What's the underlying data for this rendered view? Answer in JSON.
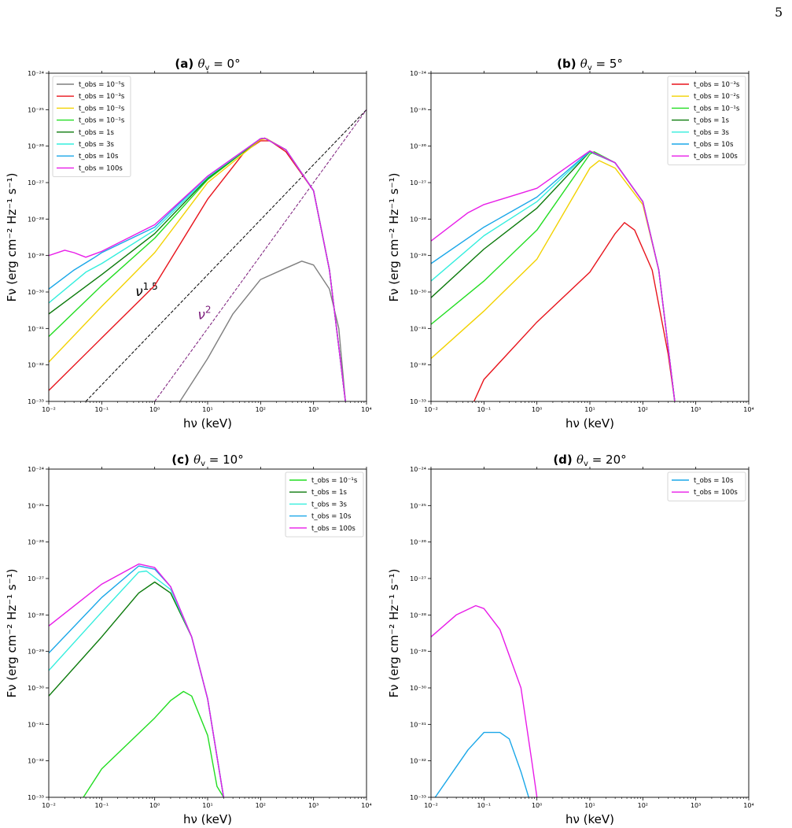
{
  "page": {
    "number": "5"
  },
  "chart_data": [
    {
      "type": "line",
      "panel": "(a)",
      "title_label": "(a)",
      "title_angle": "0°",
      "xlabel": "hν (keV)",
      "ylabel": "Fν (erg cm⁻² Hz⁻¹ s⁻¹)",
      "x_scale": "log",
      "y_scale": "log",
      "xlim": [
        0.01,
        10000
      ],
      "ylim": [
        1e-33,
        1e-24
      ],
      "legend_position": "top-left",
      "series": [
        {
          "name": "t_obs = 10⁻⁵s",
          "color": "#7f7f7f",
          "points": [
            [
              3,
              1e-33
            ],
            [
              10,
              1.5e-32
            ],
            [
              30,
              2.5e-31
            ],
            [
              100,
              2.2e-30
            ],
            [
              300,
              4.5e-30
            ],
            [
              600,
              7e-30
            ],
            [
              1000,
              5.5e-30
            ],
            [
              2000,
              1.2e-30
            ],
            [
              3000,
              1e-31
            ],
            [
              4000,
              1e-33
            ]
          ]
        },
        {
          "name": "t_obs = 10⁻³s",
          "color": "#e8141c",
          "points": [
            [
              0.01,
              2e-33
            ],
            [
              0.1,
              5.5e-32
            ],
            [
              1,
              1.5e-30
            ],
            [
              10,
              3.5e-28
            ],
            [
              50,
              7e-27
            ],
            [
              100,
              1.4e-26
            ],
            [
              150,
              1.4e-26
            ],
            [
              300,
              7e-27
            ],
            [
              1000,
              6e-28
            ],
            [
              2000,
              4e-30
            ],
            [
              4000,
              1e-33
            ]
          ]
        },
        {
          "name": "t_obs = 10⁻²s",
          "color": "#f2d200",
          "points": [
            [
              0.01,
              1.2e-32
            ],
            [
              0.1,
              4e-31
            ],
            [
              1,
              1.2e-29
            ],
            [
              10,
              1e-27
            ],
            [
              100,
              1.5e-26
            ],
            [
              130,
              1.6e-26
            ],
            [
              300,
              8e-27
            ],
            [
              1000,
              6e-28
            ],
            [
              2000,
              4e-30
            ],
            [
              4000,
              1e-33
            ]
          ]
        },
        {
          "name": "t_obs = 10⁻¹s",
          "color": "#22dd22",
          "points": [
            [
              0.01,
              6e-32
            ],
            [
              0.1,
              1.5e-30
            ],
            [
              1,
              3e-29
            ],
            [
              10,
              1.2e-27
            ],
            [
              100,
              1.6e-26
            ],
            [
              120,
              1.65e-26
            ],
            [
              300,
              8e-27
            ],
            [
              1000,
              6e-28
            ],
            [
              2000,
              4e-30
            ],
            [
              4000,
              1e-33
            ]
          ]
        },
        {
          "name": "t_obs = 1s",
          "color": "#0b7a0b",
          "points": [
            [
              0.01,
              2.5e-31
            ],
            [
              0.1,
              3e-30
            ],
            [
              1,
              4e-29
            ],
            [
              10,
              1.3e-27
            ],
            [
              100,
              1.6e-26
            ],
            [
              120,
              1.65e-26
            ],
            [
              300,
              8e-27
            ],
            [
              1000,
              6e-28
            ],
            [
              2000,
              4e-30
            ],
            [
              4000,
              1e-33
            ]
          ]
        },
        {
          "name": "t_obs = 3s",
          "color": "#33eedd",
          "points": [
            [
              0.01,
              5e-31
            ],
            [
              0.05,
              3.5e-30
            ],
            [
              0.1,
              6e-30
            ],
            [
              1,
              5e-29
            ],
            [
              10,
              1.4e-27
            ],
            [
              100,
              1.6e-26
            ],
            [
              120,
              1.65e-26
            ],
            [
              300,
              8e-27
            ],
            [
              1000,
              6e-28
            ],
            [
              2000,
              4e-30
            ],
            [
              4000,
              1e-33
            ]
          ]
        },
        {
          "name": "t_obs = 10s",
          "color": "#1aa7e8",
          "points": [
            [
              0.01,
              1.2e-30
            ],
            [
              0.03,
              4e-30
            ],
            [
              0.07,
              8.5e-30
            ],
            [
              0.1,
              1.2e-29
            ],
            [
              1,
              6e-29
            ],
            [
              10,
              1.5e-27
            ],
            [
              100,
              1.6e-26
            ],
            [
              120,
              1.65e-26
            ],
            [
              300,
              8e-27
            ],
            [
              1000,
              6e-28
            ],
            [
              2000,
              4e-30
            ],
            [
              4000,
              1e-33
            ]
          ]
        },
        {
          "name": "t_obs = 100s",
          "color": "#e81ce8",
          "points": [
            [
              0.01,
              1e-29
            ],
            [
              0.02,
              1.4e-29
            ],
            [
              0.03,
              1.2e-29
            ],
            [
              0.05,
              9e-30
            ],
            [
              0.1,
              1.3e-29
            ],
            [
              1,
              7e-29
            ],
            [
              10,
              1.5e-27
            ],
            [
              100,
              1.6e-26
            ],
            [
              120,
              1.65e-26
            ],
            [
              300,
              8e-27
            ],
            [
              1000,
              6e-28
            ],
            [
              2000,
              4e-30
            ],
            [
              4000,
              1e-33
            ]
          ]
        }
      ],
      "reference_lines": [
        {
          "label": "ν",
          "exponent": "1.5",
          "color": "#000000",
          "points": [
            [
              0.05,
              1e-33
            ],
            [
              10000,
              1e-25
            ]
          ]
        },
        {
          "label": "ν",
          "exponent": "2",
          "color": "#7a1a7a",
          "points": [
            [
              1,
              1e-33
            ],
            [
              10000,
              1e-25
            ]
          ]
        }
      ]
    },
    {
      "type": "line",
      "panel": "(b)",
      "title_label": "(b)",
      "title_angle": "5°",
      "xlabel": "hν (keV)",
      "ylabel": "Fν (erg cm⁻² Hz⁻¹ s⁻¹)",
      "x_scale": "log",
      "y_scale": "log",
      "xlim": [
        0.01,
        10000
      ],
      "ylim": [
        1e-33,
        1e-24
      ],
      "legend_position": "top-right",
      "series": [
        {
          "name": "t_obs = 10⁻³s",
          "color": "#e8141c",
          "points": [
            [
              0.065,
              1e-33
            ],
            [
              0.1,
              4e-33
            ],
            [
              1,
              1.5e-31
            ],
            [
              10,
              3.5e-30
            ],
            [
              30,
              4e-29
            ],
            [
              45,
              8e-29
            ],
            [
              70,
              5e-29
            ],
            [
              150,
              4e-30
            ],
            [
              300,
              2e-32
            ],
            [
              400,
              1e-33
            ]
          ]
        },
        {
          "name": "t_obs = 10⁻²s",
          "color": "#f2d200",
          "points": [
            [
              0.01,
              1.5e-32
            ],
            [
              0.1,
              3e-31
            ],
            [
              1,
              8e-30
            ],
            [
              10,
              2.5e-27
            ],
            [
              15,
              4e-27
            ],
            [
              30,
              2.5e-27
            ],
            [
              100,
              2.5e-28
            ],
            [
              200,
              4e-30
            ],
            [
              400,
              1e-33
            ]
          ]
        },
        {
          "name": "t_obs = 10⁻¹s",
          "color": "#22dd22",
          "points": [
            [
              0.01,
              1.3e-31
            ],
            [
              0.1,
              2e-30
            ],
            [
              1,
              5e-29
            ],
            [
              10,
              6e-27
            ],
            [
              12,
              7e-27
            ],
            [
              30,
              3.5e-27
            ],
            [
              100,
              3e-28
            ],
            [
              200,
              4e-30
            ],
            [
              400,
              1e-33
            ]
          ]
        },
        {
          "name": "t_obs = 1s",
          "color": "#0b7a0b",
          "points": [
            [
              0.01,
              7e-31
            ],
            [
              0.1,
              1.5e-29
            ],
            [
              1,
              2e-28
            ],
            [
              10,
              7e-27
            ],
            [
              30,
              3.5e-27
            ],
            [
              100,
              3e-28
            ],
            [
              200,
              4e-30
            ],
            [
              400,
              1e-33
            ]
          ]
        },
        {
          "name": "t_obs = 3s",
          "color": "#33eedd",
          "points": [
            [
              0.01,
              2e-30
            ],
            [
              0.1,
              3.5e-29
            ],
            [
              1,
              3e-28
            ],
            [
              10,
              7.2e-27
            ],
            [
              30,
              3.5e-27
            ],
            [
              100,
              3e-28
            ],
            [
              200,
              4e-30
            ],
            [
              400,
              1e-33
            ]
          ]
        },
        {
          "name": "t_obs = 10s",
          "color": "#1aa7e8",
          "points": [
            [
              0.01,
              6e-30
            ],
            [
              0.1,
              6e-29
            ],
            [
              1,
              4e-28
            ],
            [
              10,
              7.3e-27
            ],
            [
              30,
              3.5e-27
            ],
            [
              100,
              3e-28
            ],
            [
              200,
              4e-30
            ],
            [
              400,
              1e-33
            ]
          ]
        },
        {
          "name": "t_obs = 100s",
          "color": "#e81ce8",
          "points": [
            [
              0.01,
              2.5e-29
            ],
            [
              0.05,
              1.5e-28
            ],
            [
              0.1,
              2.5e-28
            ],
            [
              1,
              7e-28
            ],
            [
              10,
              7.4e-27
            ],
            [
              30,
              3.5e-27
            ],
            [
              100,
              3e-28
            ],
            [
              200,
              4e-30
            ],
            [
              400,
              1e-33
            ]
          ]
        }
      ]
    },
    {
      "type": "line",
      "panel": "(c)",
      "title_label": "(c)",
      "title_angle": "10°",
      "xlabel": "hν (keV)",
      "ylabel": "Fν (erg cm⁻² Hz⁻¹ s⁻¹)",
      "x_scale": "log",
      "y_scale": "log",
      "xlim": [
        0.01,
        10000
      ],
      "ylim": [
        1e-33,
        1e-24
      ],
      "legend_position": "top-right",
      "series": [
        {
          "name": "t_obs = 10⁻¹s",
          "color": "#22dd22",
          "points": [
            [
              0.045,
              1e-33
            ],
            [
              0.1,
              6e-33
            ],
            [
              1,
              1.5e-31
            ],
            [
              2,
              4.5e-31
            ],
            [
              3.5,
              8e-31
            ],
            [
              5,
              6e-31
            ],
            [
              10,
              5e-32
            ],
            [
              15,
              2e-33
            ],
            [
              20,
              1e-33
            ]
          ]
        },
        {
          "name": "t_obs = 1s",
          "color": "#0b7a0b",
          "points": [
            [
              0.01,
              6e-31
            ],
            [
              0.1,
              2.5e-29
            ],
            [
              0.5,
              4e-28
            ],
            [
              1,
              8e-28
            ],
            [
              2,
              4e-28
            ],
            [
              5,
              2.5e-29
            ],
            [
              10,
              5e-31
            ],
            [
              20,
              1e-33
            ]
          ]
        },
        {
          "name": "t_obs = 3s",
          "color": "#33eedd",
          "points": [
            [
              0.01,
              3e-30
            ],
            [
              0.1,
              1.2e-28
            ],
            [
              0.5,
              1.5e-27
            ],
            [
              0.7,
              1.6e-27
            ],
            [
              2,
              5e-28
            ],
            [
              5,
              2.5e-29
            ],
            [
              10,
              5e-31
            ],
            [
              20,
              1e-33
            ]
          ]
        },
        {
          "name": "t_obs = 10s",
          "color": "#1aa7e8",
          "points": [
            [
              0.01,
              9e-30
            ],
            [
              0.1,
              3e-28
            ],
            [
              0.5,
              2.2e-27
            ],
            [
              1,
              1.8e-27
            ],
            [
              2,
              6e-28
            ],
            [
              5,
              2.5e-29
            ],
            [
              10,
              5e-31
            ],
            [
              20,
              1e-33
            ]
          ]
        },
        {
          "name": "t_obs = 100s",
          "color": "#e81ce8",
          "points": [
            [
              0.01,
              5e-29
            ],
            [
              0.1,
              7e-28
            ],
            [
              0.5,
              2.5e-27
            ],
            [
              1,
              2e-27
            ],
            [
              2,
              6e-28
            ],
            [
              5,
              2.5e-29
            ],
            [
              10,
              5e-31
            ],
            [
              20,
              1e-33
            ]
          ]
        }
      ]
    },
    {
      "type": "line",
      "panel": "(d)",
      "title_label": "(d)",
      "title_angle": "20°",
      "xlabel": "hν (keV)",
      "ylabel": "Fν (erg cm⁻² Hz⁻¹ s⁻¹)",
      "x_scale": "log",
      "y_scale": "log",
      "xlim": [
        0.01,
        10000
      ],
      "ylim": [
        1e-33,
        1e-24
      ],
      "legend_position": "top-right",
      "series": [
        {
          "name": "t_obs = 10s",
          "color": "#1aa7e8",
          "points": [
            [
              0.012,
              1e-33
            ],
            [
              0.05,
              2e-32
            ],
            [
              0.1,
              6e-32
            ],
            [
              0.2,
              6e-32
            ],
            [
              0.3,
              4e-32
            ],
            [
              0.5,
              5e-33
            ],
            [
              0.7,
              1e-33
            ]
          ]
        },
        {
          "name": "t_obs = 100s",
          "color": "#e81ce8",
          "points": [
            [
              0.01,
              2.5e-29
            ],
            [
              0.03,
              1e-28
            ],
            [
              0.07,
              1.8e-28
            ],
            [
              0.1,
              1.5e-28
            ],
            [
              0.2,
              4e-29
            ],
            [
              0.5,
              1e-30
            ],
            [
              0.8,
              1e-32
            ],
            [
              1,
              1e-33
            ]
          ]
        }
      ]
    }
  ]
}
